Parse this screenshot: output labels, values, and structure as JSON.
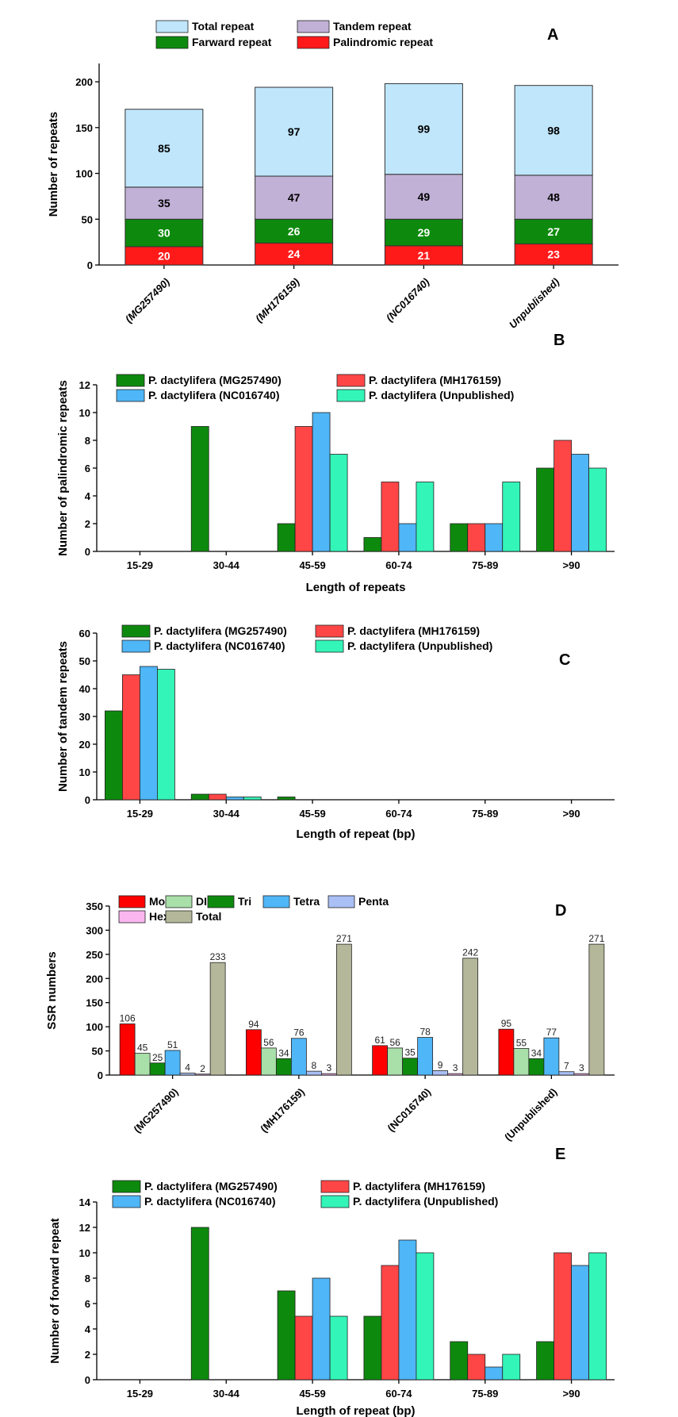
{
  "colors": {
    "total_repeat": "#bfe6fb",
    "tandem_repeat": "#c1b1d6",
    "forward_repeat": "#0d8a0d",
    "palindromic_repeat": "#ff1a1a",
    "mg257490": "#0d8a0d",
    "mh176159": "#ff4646",
    "nc016740": "#4fb6f7",
    "unpublished": "#33f5b8",
    "mono": "#ff0000",
    "di": "#a9dfa9",
    "tri": "#0d8a0d",
    "tetra": "#4fb6f7",
    "penta": "#a9bff5",
    "hexa": "#fbb6f0",
    "total": "#b4b79a"
  },
  "chart_data": [
    {
      "id": "A",
      "panel_letter": "A",
      "type": "bar",
      "stacked": true,
      "categories": [
        "(MG257490)",
        "(MH176159)",
        "(NC016740)",
        "Unpublished)"
      ],
      "series": [
        {
          "name": "Palindromic repeat",
          "color_key": "palindromic_repeat",
          "values": [
            20,
            24,
            21,
            23
          ]
        },
        {
          "name": "Farward repeat",
          "color_key": "forward_repeat",
          "values": [
            30,
            26,
            29,
            27
          ]
        },
        {
          "name": "Tandem repeat",
          "color_key": "tandem_repeat",
          "values": [
            35,
            47,
            49,
            48
          ]
        },
        {
          "name": "Total repeat",
          "color_key": "total_repeat",
          "values": [
            85,
            97,
            99,
            98
          ]
        }
      ],
      "legend_order": [
        "Total repeat",
        "Tandem repeat",
        "Farward repeat",
        "Palindromic repeat"
      ],
      "xlabel": "",
      "ylabel": "Number of repeats",
      "ylim": [
        0,
        220
      ],
      "yticks": [
        "0",
        "50",
        "100",
        "150",
        "200"
      ]
    },
    {
      "id": "B",
      "panel_letter": "B",
      "type": "bar",
      "categories": [
        "15-29",
        "30-44",
        "45-59",
        "60-74",
        "75-89",
        ">90"
      ],
      "series": [
        {
          "name": "P. dactylifera (MG257490)",
          "color_key": "mg257490",
          "values": [
            0,
            9,
            2,
            1,
            2,
            6
          ]
        },
        {
          "name": "P. dactylifera (MH176159)",
          "color_key": "mh176159",
          "values": [
            0,
            0,
            9,
            5,
            2,
            8
          ]
        },
        {
          "name": "P. dactylifera (NC016740)",
          "color_key": "nc016740",
          "values": [
            0,
            0,
            10,
            2,
            2,
            7
          ]
        },
        {
          "name": "P. dactylifera (Unpublished)",
          "color_key": "unpublished",
          "values": [
            0,
            0,
            7,
            5,
            5,
            6
          ]
        }
      ],
      "xlabel": "Length of repeats",
      "ylabel": "Number of palindromic repeats",
      "ylim": [
        0,
        12
      ],
      "yticks": [
        "0",
        "2",
        "4",
        "6",
        "8",
        "10",
        "12"
      ]
    },
    {
      "id": "C",
      "panel_letter": "C",
      "type": "bar",
      "categories": [
        "15-29",
        "30-44",
        "45-59",
        "60-74",
        "75-89",
        ">90"
      ],
      "series": [
        {
          "name": "P. dactylifera (MG257490)",
          "color_key": "mg257490",
          "values": [
            32,
            2,
            1,
            0,
            0,
            0
          ]
        },
        {
          "name": "P. dactylifera (MH176159)",
          "color_key": "mh176159",
          "values": [
            45,
            2,
            0,
            0,
            0,
            0
          ]
        },
        {
          "name": "P. dactylifera (NC016740)",
          "color_key": "nc016740",
          "values": [
            48,
            1,
            0,
            0,
            0,
            0
          ]
        },
        {
          "name": "P. dactylifera (Unpublished)",
          "color_key": "unpublished",
          "values": [
            47,
            1,
            0,
            0,
            0,
            0
          ]
        }
      ],
      "xlabel": "Length of repeat (bp)",
      "ylabel": "Number of tandem repeats",
      "ylim": [
        0,
        60
      ],
      "yticks": [
        "0",
        "10",
        "20",
        "30",
        "40",
        "50",
        "60"
      ]
    },
    {
      "id": "D",
      "panel_letter": "D",
      "type": "bar",
      "categories": [
        "(MG257490)",
        "(MH176159)",
        "(NC016740)",
        "(Unpublished)"
      ],
      "series": [
        {
          "name": "Mono",
          "color_key": "mono",
          "values": [
            106,
            94,
            61,
            95
          ]
        },
        {
          "name": "DI",
          "color_key": "di",
          "values": [
            45,
            56,
            56,
            55
          ]
        },
        {
          "name": "Tri",
          "color_key": "tri",
          "values": [
            25,
            34,
            35,
            34
          ]
        },
        {
          "name": "Tetra",
          "color_key": "tetra",
          "values": [
            51,
            76,
            78,
            77
          ]
        },
        {
          "name": "Penta",
          "color_key": "penta",
          "values": [
            4,
            8,
            9,
            7
          ]
        },
        {
          "name": "Hexa",
          "color_key": "hexa",
          "values": [
            2,
            3,
            3,
            3
          ]
        },
        {
          "name": "Total",
          "color_key": "total",
          "values": [
            233,
            271,
            242,
            271
          ]
        }
      ],
      "xlabel": "",
      "ylabel": "SSR numbers",
      "ylim": [
        0,
        350
      ],
      "yticks": [
        "0",
        "50",
        "100",
        "150",
        "200",
        "250",
        "300",
        "350"
      ]
    },
    {
      "id": "E",
      "panel_letter": "E",
      "type": "bar",
      "categories": [
        "15-29",
        "30-44",
        "45-59",
        "60-74",
        "75-89",
        ">90"
      ],
      "series": [
        {
          "name": "P. dactylifera (MG257490)",
          "color_key": "mg257490",
          "values": [
            0,
            12,
            7,
            5,
            3,
            3
          ]
        },
        {
          "name": "P. dactylifera (MH176159)",
          "color_key": "mh176159",
          "values": [
            0,
            0,
            5,
            9,
            2,
            10
          ]
        },
        {
          "name": "P. dactylifera (NC016740)",
          "color_key": "nc016740",
          "values": [
            0,
            0,
            8,
            11,
            1,
            9
          ]
        },
        {
          "name": "P. dactylifera (Unpublished)",
          "color_key": "unpublished",
          "values": [
            0,
            0,
            5,
            10,
            2,
            10
          ]
        }
      ],
      "xlabel": "Length of repeat (bp)",
      "ylabel": "Number of forward repeat",
      "ylim": [
        0,
        14
      ],
      "yticks": [
        "0",
        "2",
        "4",
        "6",
        "8",
        "10",
        "12",
        "14"
      ]
    }
  ]
}
